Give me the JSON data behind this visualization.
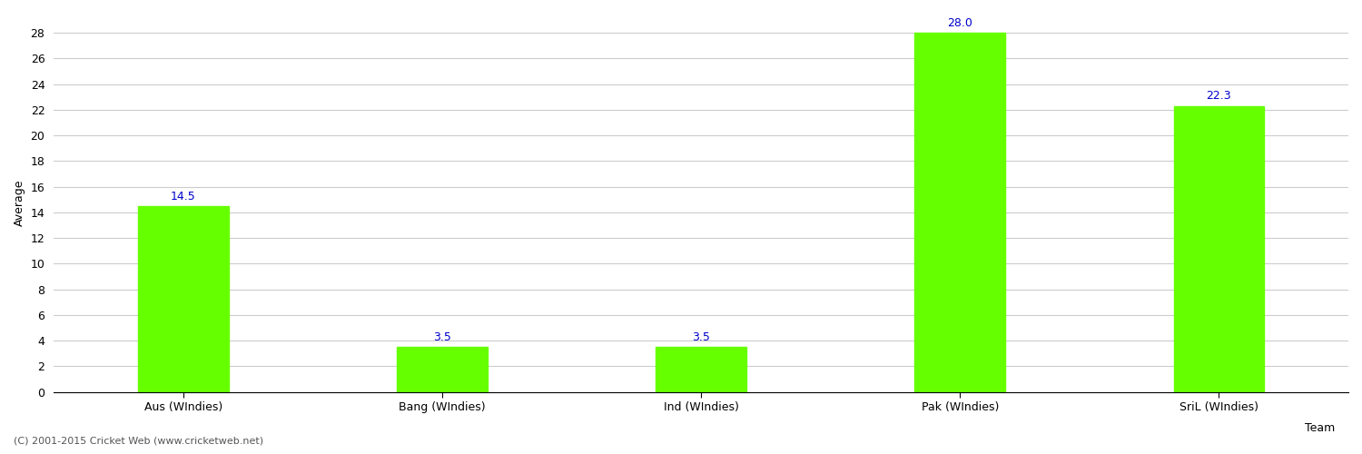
{
  "categories": [
    "Aus (WIndies)",
    "Bang (WIndies)",
    "Ind (WIndies)",
    "Pak (WIndies)",
    "SriL (WIndies)"
  ],
  "values": [
    14.5,
    3.5,
    3.5,
    28.0,
    22.3
  ],
  "bar_color": "#66ff00",
  "bar_edge_color": "#66ff00",
  "xlabel": "Team",
  "ylabel": "Average",
  "ylim": [
    0,
    29.5
  ],
  "yticks": [
    0,
    2,
    4,
    6,
    8,
    10,
    12,
    14,
    16,
    18,
    20,
    22,
    24,
    26,
    28
  ],
  "value_label_color": "#0000cc",
  "value_label_fontsize": 9,
  "axis_label_fontsize": 9,
  "tick_label_fontsize": 9,
  "grid_color": "#cccccc",
  "background_color": "#ffffff",
  "footer_text": "(C) 2001-2015 Cricket Web (www.cricketweb.net)",
  "footer_fontsize": 8,
  "footer_color": "#555555"
}
